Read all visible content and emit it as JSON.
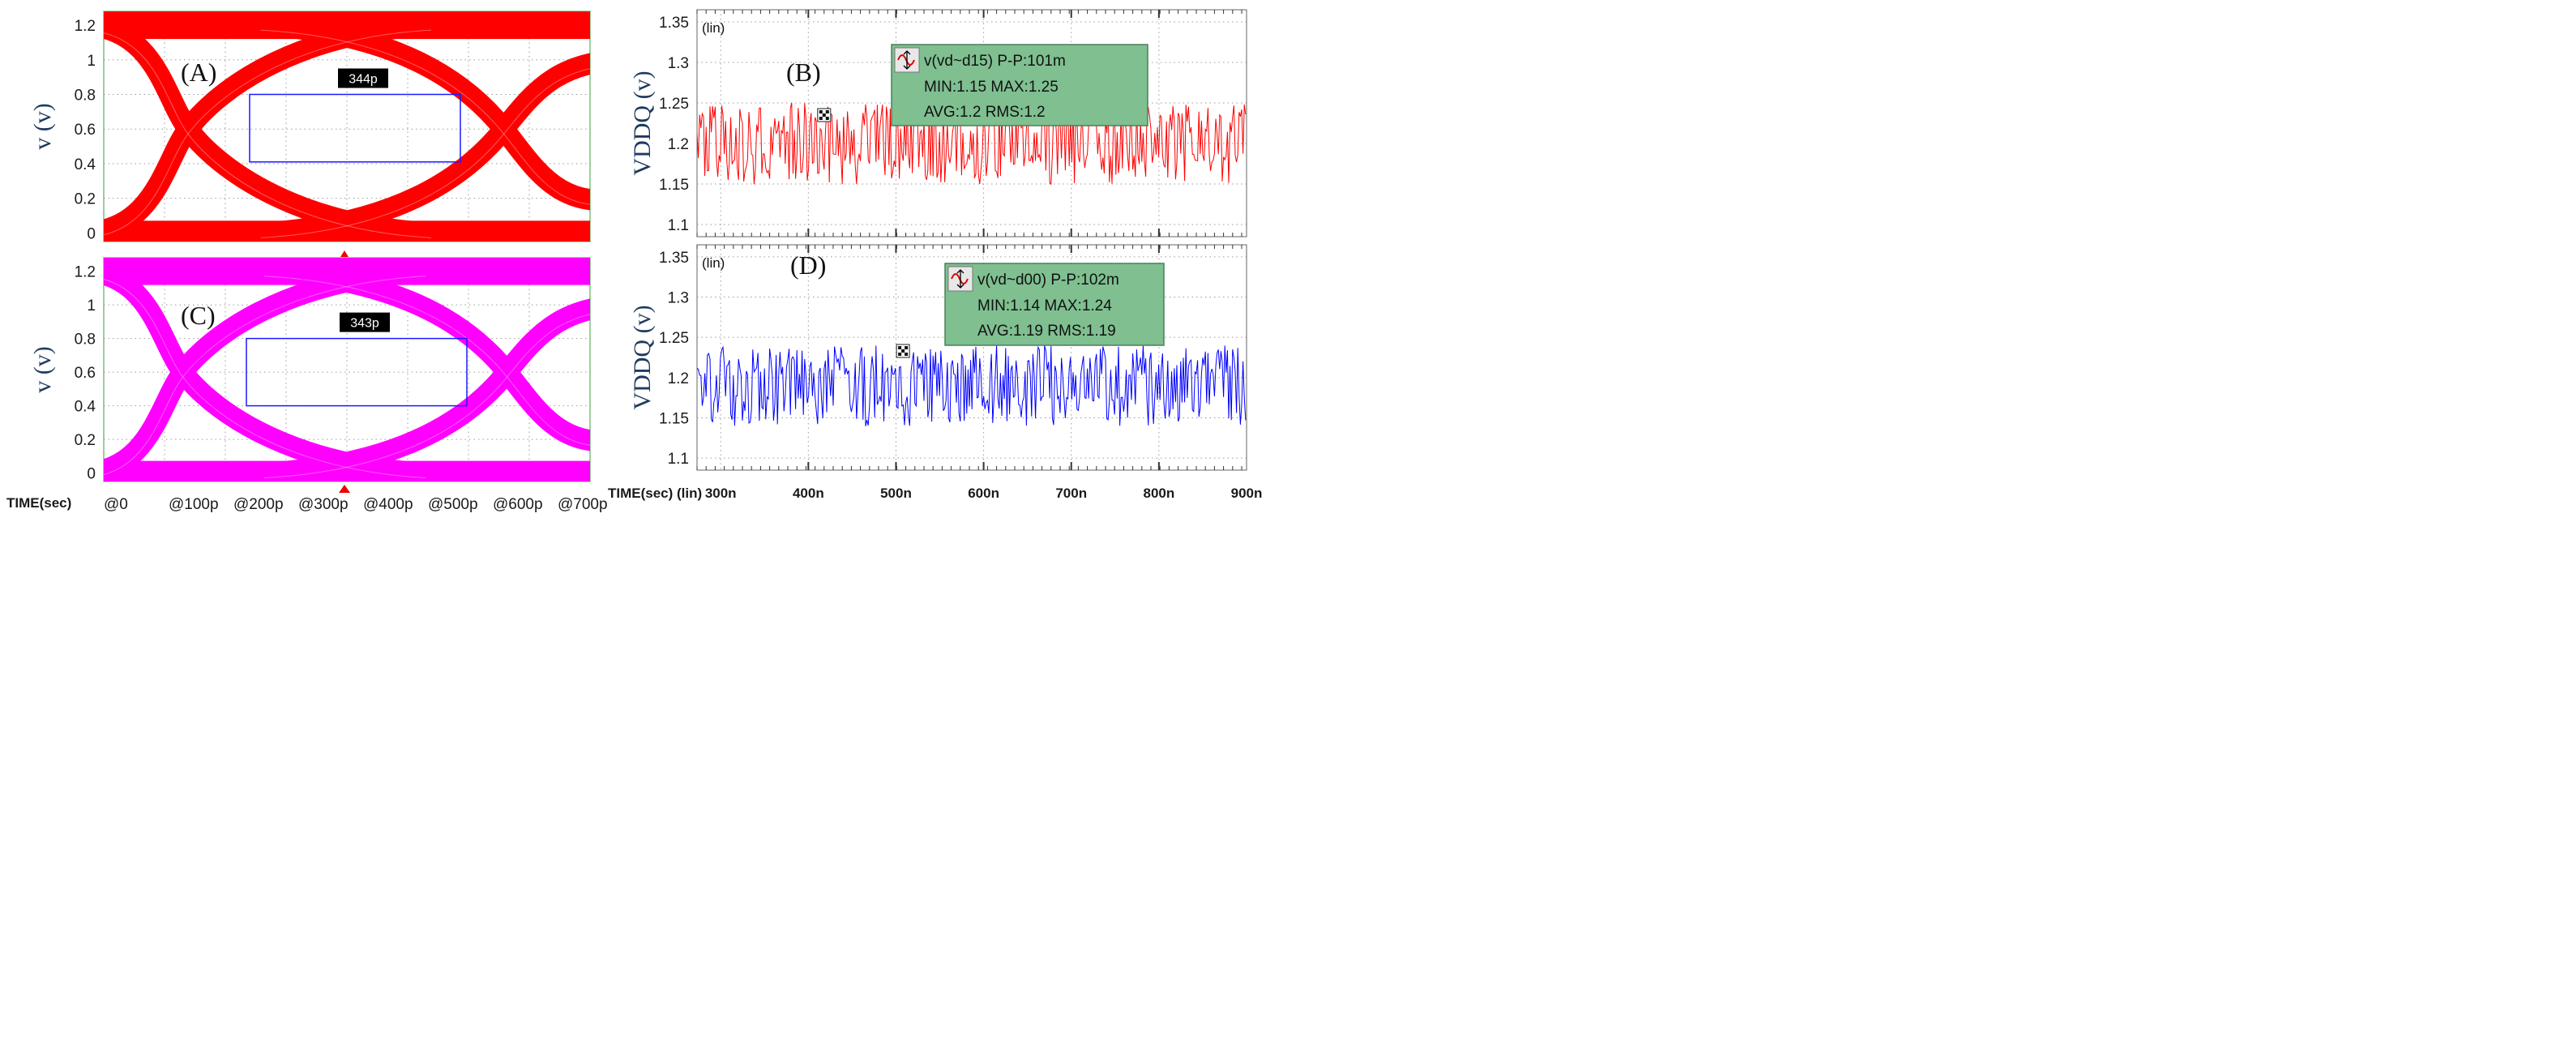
{
  "chart_data": [
    {
      "type": "line",
      "panel": "A",
      "label": "(A)",
      "subtype": "eye-diagram",
      "ylabel": "v (v)",
      "ylim": [
        -0.05,
        1.28
      ],
      "xlim": [
        0,
        750
      ],
      "yticks": [
        0,
        0.2,
        0.4,
        0.6,
        0.8,
        1,
        1.2
      ],
      "ytick_labels": [
        "0",
        "0.2",
        "0.4",
        "0.6",
        "0.8",
        "1",
        "1.2"
      ],
      "xtick_labels": [],
      "color": "#ff0000",
      "eye_width_label": "344p",
      "eye_box": {
        "x": [
          225,
          550
        ],
        "y": [
          0.41,
          0.8
        ]
      },
      "crossings": [
        {
          "x": 130,
          "y": 0.6
        },
        {
          "x": 617,
          "y": 0.6
        }
      ],
      "levels": {
        "high": 1.2,
        "low": 0
      }
    },
    {
      "type": "line",
      "panel": "B",
      "label": "(B)",
      "ylabel": "VDDQ (v)",
      "axis_mode": "(lin)",
      "ylim": [
        1.085,
        1.365
      ],
      "xlim": [
        273,
        900
      ],
      "yticks": [
        1.1,
        1.15,
        1.2,
        1.25,
        1.3,
        1.35
      ],
      "ytick_labels": [
        "1.1",
        "1.15",
        "1.2",
        "1.25",
        "1.3",
        "1.35"
      ],
      "color": "#ff0000",
      "series": [
        {
          "name": "v(vd~d15)",
          "center": 1.2,
          "pp": 0.101
        }
      ],
      "stats": {
        "name": "v(vd~d15)",
        "pp": "P-P:101m",
        "min": "MIN:1.15",
        "max": "MAX:1.25",
        "avg": "AVG:1.2",
        "rms": "RMS:1.2"
      },
      "marker_x": 418
    },
    {
      "type": "line",
      "panel": "C",
      "label": "(C)",
      "subtype": "eye-diagram",
      "ylabel": "v (v)",
      "ylim": [
        -0.05,
        1.28
      ],
      "xlim": [
        0,
        750
      ],
      "yticks": [
        0,
        0.2,
        0.4,
        0.6,
        0.8,
        1,
        1.2
      ],
      "ytick_labels": [
        "0",
        "0.2",
        "0.4",
        "0.6",
        "0.8",
        "1",
        "1.2"
      ],
      "xlabel": "TIME(sec)",
      "xtick_labels": [
        "@0",
        "@100p",
        "@200p",
        "@300p",
        "@400p",
        "@500p",
        "@600p",
        "@700p"
      ],
      "color": "#ff00ff",
      "eye_width_label": "343p",
      "eye_box": {
        "x": [
          220,
          560
        ],
        "y": [
          0.4,
          0.8
        ]
      },
      "crossings": [
        {
          "x": 122,
          "y": 0.6
        },
        {
          "x": 622,
          "y": 0.6
        }
      ],
      "levels": {
        "high": 1.2,
        "low": 0
      }
    },
    {
      "type": "line",
      "panel": "D",
      "label": "(D)",
      "ylabel": "VDDQ (v)",
      "axis_mode": "(lin)",
      "ylim": [
        1.085,
        1.365
      ],
      "xlim": [
        273,
        900
      ],
      "yticks": [
        1.1,
        1.15,
        1.2,
        1.25,
        1.3,
        1.35
      ],
      "ytick_labels": [
        "1.1",
        "1.15",
        "1.2",
        "1.25",
        "1.3",
        "1.35"
      ],
      "xlabel": "TIME(sec) (lin)",
      "xticks": [
        300,
        400,
        500,
        600,
        700,
        800,
        900
      ],
      "xtick_labels": [
        "300n",
        "400n",
        "500n",
        "600n",
        "700n",
        "800n",
        "900n"
      ],
      "color": "#0000ff",
      "series": [
        {
          "name": "v(vd~d00)",
          "center": 1.19,
          "pp": 0.102
        }
      ],
      "stats": {
        "name": "v(vd~d00)",
        "pp": "P-P:102m",
        "min": "MIN:1.14",
        "max": "MAX:1.24",
        "avg": "AVG:1.19",
        "rms": "RMS:1.19"
      },
      "marker_x": 508
    }
  ]
}
